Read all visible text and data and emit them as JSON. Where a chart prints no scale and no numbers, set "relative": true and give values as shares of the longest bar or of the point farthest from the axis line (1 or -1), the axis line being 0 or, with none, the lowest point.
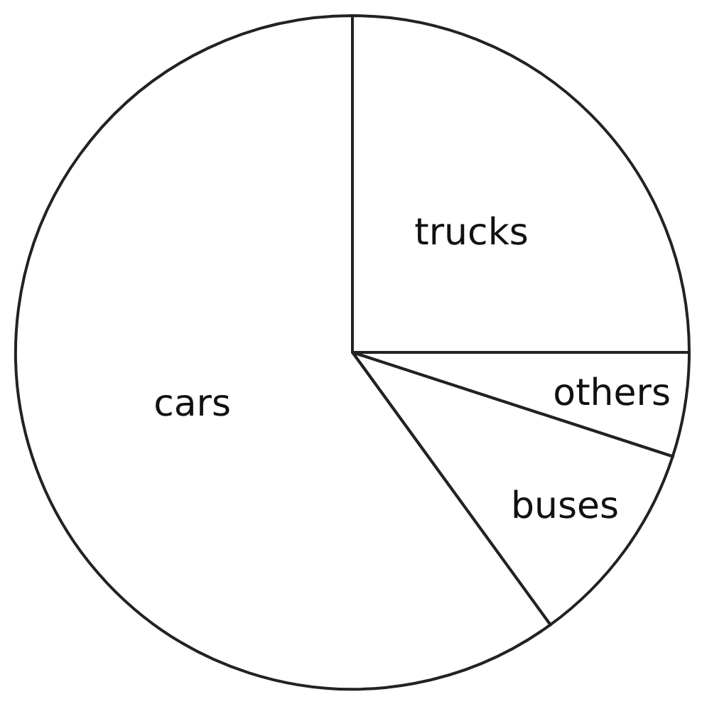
{
  "chart_data": {
    "type": "pie",
    "relative": true,
    "categories": [
      "trucks",
      "others",
      "buses",
      "cars"
    ],
    "values": [
      25,
      5,
      10,
      60
    ],
    "colors": [
      "#ffffff",
      "#ffffff",
      "#ffffff",
      "#ffffff"
    ]
  }
}
